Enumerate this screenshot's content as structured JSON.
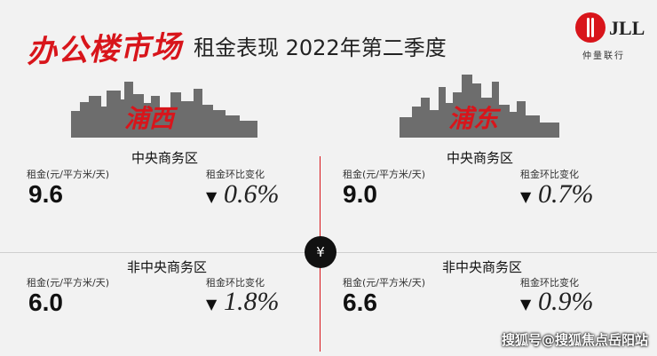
{
  "header": {
    "handwritten_title": "办公楼市场",
    "title": "租金表现 2022年第二季度"
  },
  "logo": {
    "brand": "JLL",
    "sub": "仲量联行"
  },
  "districts": {
    "west": "浦西",
    "east": "浦东"
  },
  "labels": {
    "rent": "租金(元/平方米/天)",
    "change": "租金环比变化",
    "down_icon": "▼"
  },
  "cells": {
    "west_cbd": {
      "zone": "中央商务区",
      "value": "9.6",
      "change": "0.6%"
    },
    "east_cbd": {
      "zone": "中央商务区",
      "value": "9.0",
      "change": "0.7%"
    },
    "west_noncbd": {
      "zone": "非中央商务区",
      "value": "6.0",
      "change": "1.8%"
    },
    "east_noncbd": {
      "zone": "非中央商务区",
      "value": "6.6",
      "change": "0.9%"
    }
  },
  "center_icon": "¥",
  "watermark": "搜狐号@搜狐焦点岳阳站",
  "colors": {
    "accent": "#d8151b",
    "text": "#111111",
    "background": "#f2f2f2"
  }
}
